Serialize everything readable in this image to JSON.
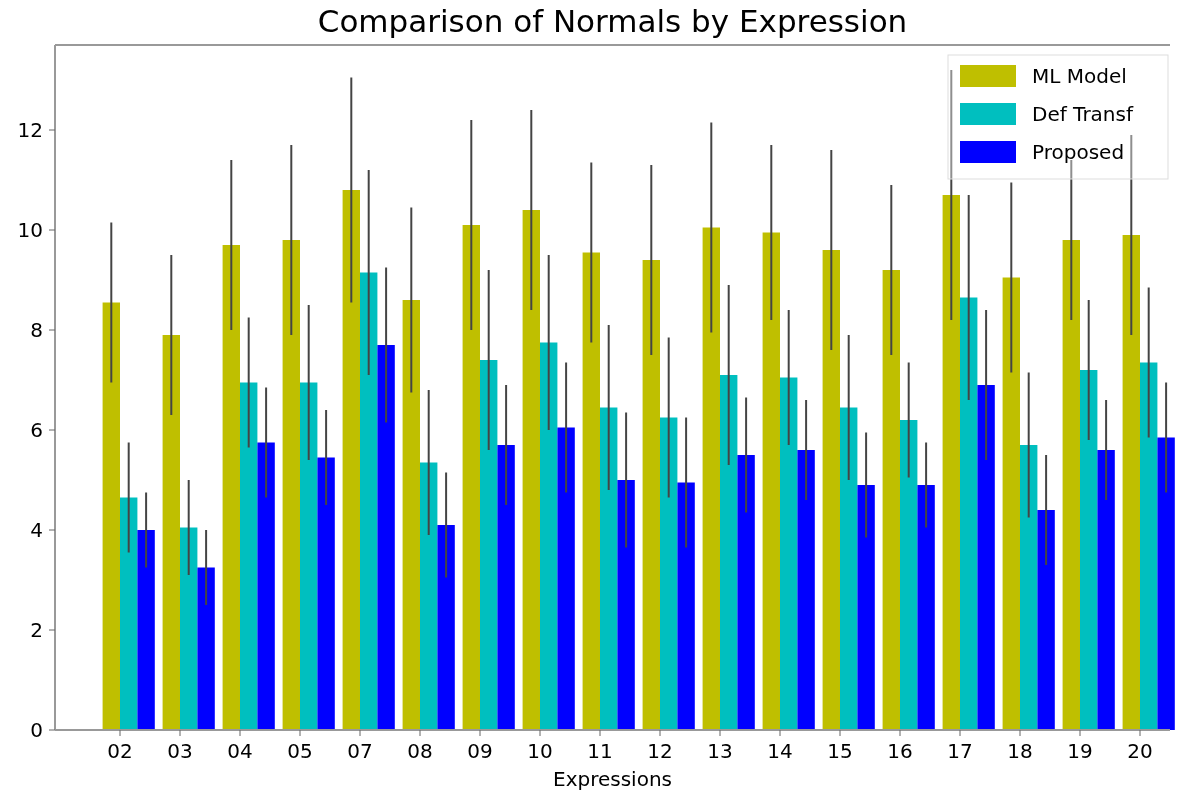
{
  "chart_data": {
    "type": "bar",
    "title": "Comparison of Normals by Expression",
    "xlabel": "Expressions",
    "categories": [
      "02",
      "03",
      "04",
      "05",
      "07",
      "08",
      "09",
      "10",
      "11",
      "12",
      "13",
      "14",
      "15",
      "16",
      "17",
      "18",
      "19",
      "20"
    ],
    "series": [
      {
        "name": "ML Model",
        "color": "#bfbf00",
        "values": [
          8.55,
          7.9,
          9.7,
          9.8,
          10.8,
          8.6,
          10.1,
          10.4,
          9.55,
          9.4,
          10.05,
          9.95,
          9.6,
          9.2,
          10.7,
          9.05,
          9.8,
          9.9
        ],
        "errors": [
          1.6,
          1.6,
          1.7,
          1.9,
          2.25,
          1.85,
          2.1,
          2.0,
          1.8,
          1.9,
          2.1,
          1.75,
          2.0,
          1.7,
          2.5,
          1.9,
          1.6,
          2.0
        ]
      },
      {
        "name": "Def Transf",
        "color": "#00bfbf",
        "values": [
          4.65,
          4.05,
          6.95,
          6.95,
          9.15,
          5.35,
          7.4,
          7.75,
          6.45,
          6.25,
          7.1,
          7.05,
          6.45,
          6.2,
          8.65,
          5.7,
          7.2,
          7.35
        ],
        "errors": [
          1.1,
          0.95,
          1.3,
          1.55,
          2.05,
          1.45,
          1.8,
          1.75,
          1.65,
          1.6,
          1.8,
          1.35,
          1.45,
          1.15,
          2.05,
          1.45,
          1.4,
          1.5
        ]
      },
      {
        "name": "Proposed",
        "color": "#0000ff",
        "values": [
          4.0,
          3.25,
          5.75,
          5.45,
          7.7,
          4.1,
          5.7,
          6.05,
          5.0,
          4.95,
          5.5,
          5.6,
          4.9,
          4.9,
          6.9,
          4.4,
          5.6,
          5.85
        ],
        "errors": [
          0.75,
          0.75,
          1.1,
          0.95,
          1.55,
          1.05,
          1.2,
          1.3,
          1.35,
          1.3,
          1.15,
          1.0,
          1.05,
          0.85,
          1.5,
          1.1,
          1.0,
          1.1
        ]
      }
    ],
    "ylim": [
      0,
      13.7
    ],
    "yticks": [
      0,
      2,
      4,
      6,
      8,
      10,
      12
    ],
    "legend": "top right",
    "grid": false
  }
}
